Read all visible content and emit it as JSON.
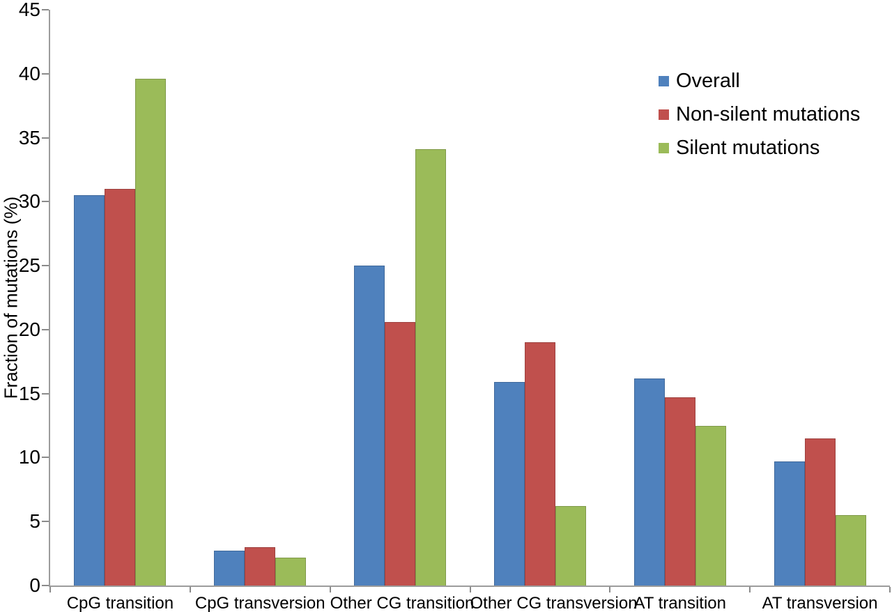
{
  "chart_data": {
    "type": "bar",
    "title": "",
    "xlabel": "",
    "ylabel": "Fraction of mutations (%)",
    "ylim": [
      0,
      45
    ],
    "ytick_step": 5,
    "yticks": [
      0,
      5,
      10,
      15,
      20,
      25,
      30,
      35,
      40,
      45
    ],
    "grid": false,
    "legend_position": "top-right",
    "background_color": "#ffffff",
    "axis_color": "#9c9c9c",
    "categories": [
      "CpG transition",
      "CpG transversion",
      "Other CG transition",
      "Other CG transversion",
      "AT transition",
      "AT transversion"
    ],
    "series": [
      {
        "name": "Overall",
        "color": "#4F81BD",
        "values": [
          30.5,
          2.7,
          25.0,
          15.9,
          16.2,
          9.7
        ]
      },
      {
        "name": "Non-silent mutations",
        "color": "#C0504D",
        "values": [
          31.0,
          3.0,
          20.6,
          19.0,
          14.7,
          11.5
        ]
      },
      {
        "name": "Silent mutations",
        "color": "#9BBB59",
        "values": [
          39.6,
          2.2,
          34.1,
          6.2,
          12.5,
          5.5
        ]
      }
    ]
  }
}
